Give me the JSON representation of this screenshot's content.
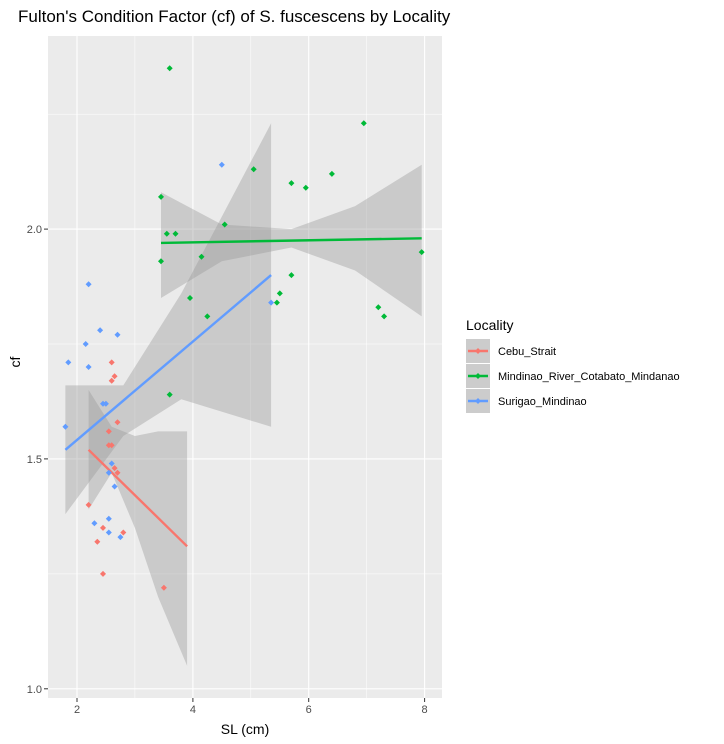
{
  "chart_data": {
    "type": "scatter",
    "title": "Fulton's Condition Factor (cf) of S. fuscescens by Locality",
    "xlabel": "SL (cm)",
    "ylabel": "cf",
    "xlim": [
      1.5,
      8.3
    ],
    "ylim": [
      0.98,
      2.42
    ],
    "xticks": [
      2,
      4,
      6,
      8
    ],
    "yticks": [
      1.0,
      1.5,
      2.0
    ],
    "ytick_labels": [
      "1.0",
      "1.5",
      "2.0"
    ],
    "legend_title": "Locality",
    "legend_position": "right",
    "series": [
      {
        "name": "Cebu_Strait",
        "color": "#F8766D",
        "points": [
          [
            2.6,
            1.71
          ],
          [
            2.6,
            1.67
          ],
          [
            2.65,
            1.68
          ],
          [
            2.7,
            1.58
          ],
          [
            2.55,
            1.56
          ],
          [
            2.6,
            1.53
          ],
          [
            2.55,
            1.53
          ],
          [
            2.65,
            1.48
          ],
          [
            2.7,
            1.47
          ],
          [
            2.2,
            1.4
          ],
          [
            2.45,
            1.35
          ],
          [
            2.8,
            1.34
          ],
          [
            2.35,
            1.32
          ],
          [
            2.45,
            1.25
          ],
          [
            3.5,
            1.22
          ]
        ],
        "fit": {
          "x": [
            2.2,
            3.9
          ],
          "y": [
            1.52,
            1.31
          ]
        },
        "ci": {
          "x": [
            2.2,
            2.6,
            3.0,
            3.4,
            3.9
          ],
          "upper": [
            1.65,
            1.57,
            1.55,
            1.56,
            1.56
          ],
          "lower": [
            1.39,
            1.47,
            1.35,
            1.2,
            1.05
          ]
        }
      },
      {
        "name": "Mindinao_River_Cotabato_Mindanao",
        "color": "#00BA38",
        "points": [
          [
            3.6,
            2.35
          ],
          [
            6.95,
            2.23
          ],
          [
            5.05,
            2.13
          ],
          [
            6.4,
            2.12
          ],
          [
            5.7,
            2.1
          ],
          [
            5.95,
            2.09
          ],
          [
            3.45,
            2.07
          ],
          [
            4.55,
            2.01
          ],
          [
            3.55,
            1.99
          ],
          [
            3.7,
            1.99
          ],
          [
            3.45,
            1.93
          ],
          [
            4.15,
            1.94
          ],
          [
            7.95,
            1.95
          ],
          [
            5.7,
            1.9
          ],
          [
            5.5,
            1.86
          ],
          [
            5.45,
            1.84
          ],
          [
            3.95,
            1.85
          ],
          [
            7.2,
            1.83
          ],
          [
            7.3,
            1.81
          ],
          [
            4.25,
            1.81
          ],
          [
            3.6,
            1.64
          ]
        ],
        "fit": {
          "x": [
            3.45,
            7.95
          ],
          "y": [
            1.97,
            1.98
          ]
        },
        "ci": {
          "x": [
            3.45,
            4.5,
            5.7,
            6.8,
            7.95
          ],
          "upper": [
            2.08,
            2.01,
            2.0,
            2.05,
            2.14
          ],
          "lower": [
            1.85,
            1.93,
            1.96,
            1.91,
            1.81
          ]
        }
      },
      {
        "name": "Surigao_Mindinao",
        "color": "#619CFF",
        "points": [
          [
            4.5,
            2.14
          ],
          [
            2.2,
            1.88
          ],
          [
            5.35,
            1.84
          ],
          [
            2.4,
            1.78
          ],
          [
            2.7,
            1.77
          ],
          [
            2.15,
            1.75
          ],
          [
            1.85,
            1.71
          ],
          [
            2.2,
            1.7
          ],
          [
            2.5,
            1.62
          ],
          [
            2.45,
            1.62
          ],
          [
            1.8,
            1.57
          ],
          [
            2.6,
            1.49
          ],
          [
            2.55,
            1.47
          ],
          [
            2.65,
            1.44
          ],
          [
            2.3,
            1.36
          ],
          [
            2.55,
            1.37
          ],
          [
            2.55,
            1.34
          ],
          [
            2.75,
            1.33
          ]
        ],
        "fit": {
          "x": [
            1.8,
            5.35
          ],
          "y": [
            1.52,
            1.9
          ]
        },
        "ci": {
          "x": [
            1.8,
            2.8,
            3.8,
            5.35
          ],
          "upper": [
            1.66,
            1.66,
            1.86,
            2.23
          ],
          "lower": [
            1.38,
            1.55,
            1.63,
            1.57
          ]
        }
      }
    ]
  },
  "colors": {
    "panel_background": "#EBEBEB",
    "grid_major": "#FFFFFF",
    "ci_fill": "#999999"
  }
}
